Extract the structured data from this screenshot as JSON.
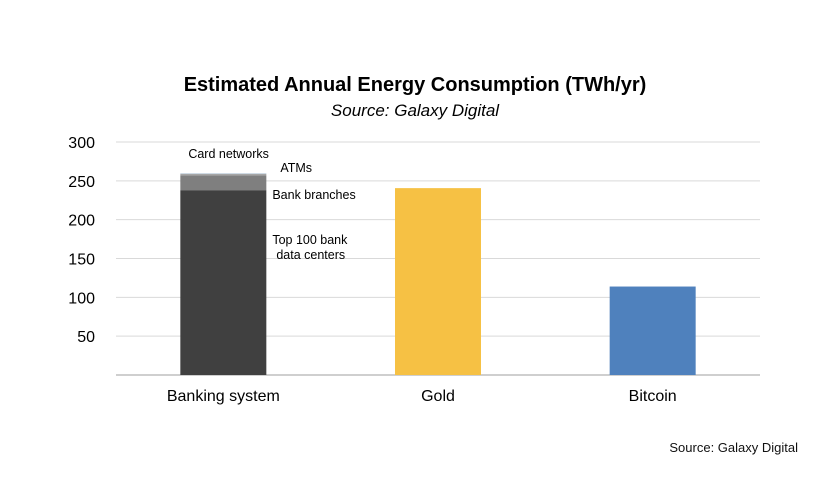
{
  "chart_data": {
    "type": "bar",
    "title": "Estimated Annual Energy Consumption (TWh/yr)",
    "subtitle": "Source: Galaxy Digital",
    "xlabel": "",
    "ylabel": "",
    "ylim": [
      0,
      300
    ],
    "yticks": [
      50,
      100,
      150,
      200,
      250,
      300
    ],
    "grid": true,
    "categories": [
      "Banking system",
      "Gold",
      "Bitcoin"
    ],
    "stack": [
      {
        "category": "Banking system",
        "segments": [
          {
            "label": "Top 100 bank\ndata centers",
            "value": 238,
            "color": "#404040"
          },
          {
            "label": "Bank branches",
            "value": 19,
            "color": "#7f7f7f"
          },
          {
            "label": "ATMs",
            "value": 2.1,
            "color": "#a6a6a6"
          },
          {
            "label": "Card networks",
            "value": 0.9,
            "color": "#c9d9e6"
          }
        ]
      }
    ],
    "values": [
      260,
      240.6,
      113.9
    ],
    "bar_colors": [
      "#404040",
      "#f6c144",
      "#4f81bd"
    ]
  },
  "footer": {
    "source": "Source: Galaxy Digital"
  },
  "colors": {
    "grid": "#d9d9d9",
    "axis": "#bfbfbf"
  }
}
